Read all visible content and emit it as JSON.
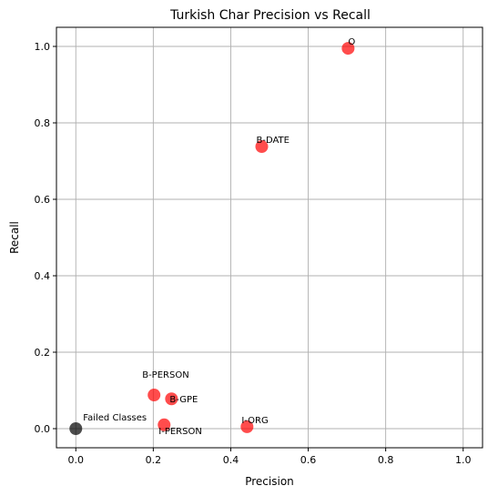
{
  "chart_data": {
    "type": "scatter",
    "title": "Turkish Char Precision vs Recall",
    "xlabel": "Precision",
    "ylabel": "Recall",
    "xlim": [
      -0.05,
      1.05
    ],
    "ylim": [
      -0.05,
      1.05
    ],
    "xticks": [
      0.0,
      0.2,
      0.4,
      0.6,
      0.8,
      1.0
    ],
    "yticks": [
      0.0,
      0.2,
      0.4,
      0.6,
      0.8,
      1.0
    ],
    "tick_labels": [
      "0.0",
      "0.2",
      "0.4",
      "0.6",
      "0.8",
      "1.0"
    ],
    "grid": true,
    "point_color": "#ff0000",
    "failed_color": "#000000",
    "points": [
      {
        "label": "O",
        "x": 0.703,
        "y": 0.995,
        "kind": "class"
      },
      {
        "label": "B-DATE",
        "x": 0.48,
        "y": 0.738,
        "kind": "class"
      },
      {
        "label": "B-PERSON",
        "x": 0.202,
        "y": 0.088,
        "kind": "class"
      },
      {
        "label": "B-GPE",
        "x": 0.247,
        "y": 0.078,
        "kind": "class"
      },
      {
        "label": "I-PERSON",
        "x": 0.228,
        "y": 0.01,
        "kind": "class"
      },
      {
        "label": "I-ORG",
        "x": 0.442,
        "y": 0.005,
        "kind": "class"
      },
      {
        "label": "Failed Classes",
        "x": 0.0,
        "y": 0.0,
        "kind": "failed"
      }
    ]
  }
}
